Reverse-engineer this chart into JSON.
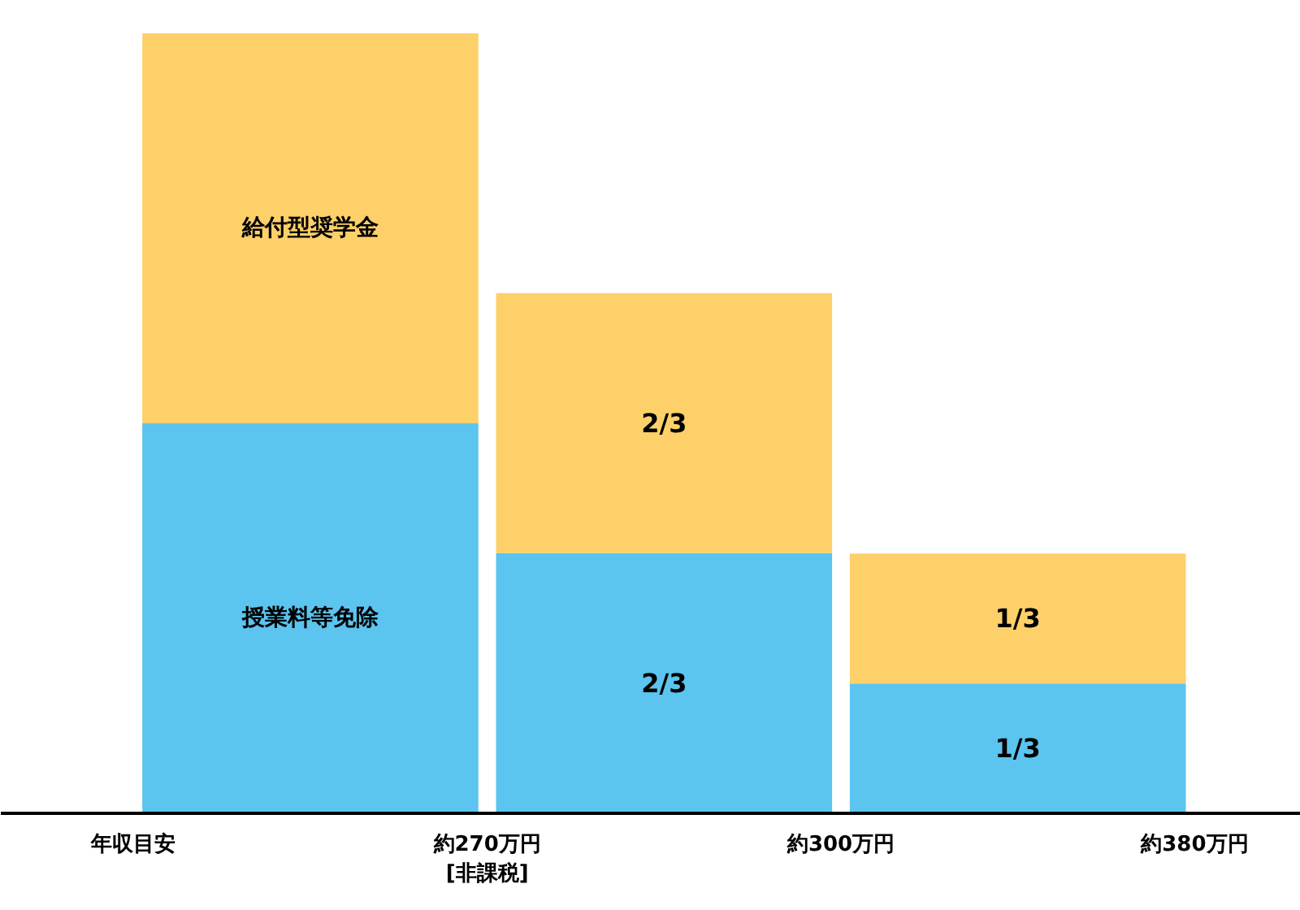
{
  "chart_data": {
    "type": "bar",
    "stacked": true,
    "ylim": [
      0,
      2
    ],
    "categories": [
      null,
      null,
      null
    ],
    "annotations": [
      "年収目安",
      "約270万円\n[非課税]",
      "約300万円",
      "約380万円"
    ],
    "grid": false,
    "series": [
      {
        "name": "授業料等免除",
        "color": "#5bc4ef",
        "values": [
          1,
          0.667,
          0.333
        ],
        "value_labels": [
          null,
          "2/3",
          "1/3"
        ]
      },
      {
        "name": "給付型奨学金",
        "color": "#fed06a",
        "values": [
          1,
          0.667,
          0.333
        ],
        "value_labels": [
          null,
          "2/3",
          "1/3"
        ]
      }
    ]
  }
}
